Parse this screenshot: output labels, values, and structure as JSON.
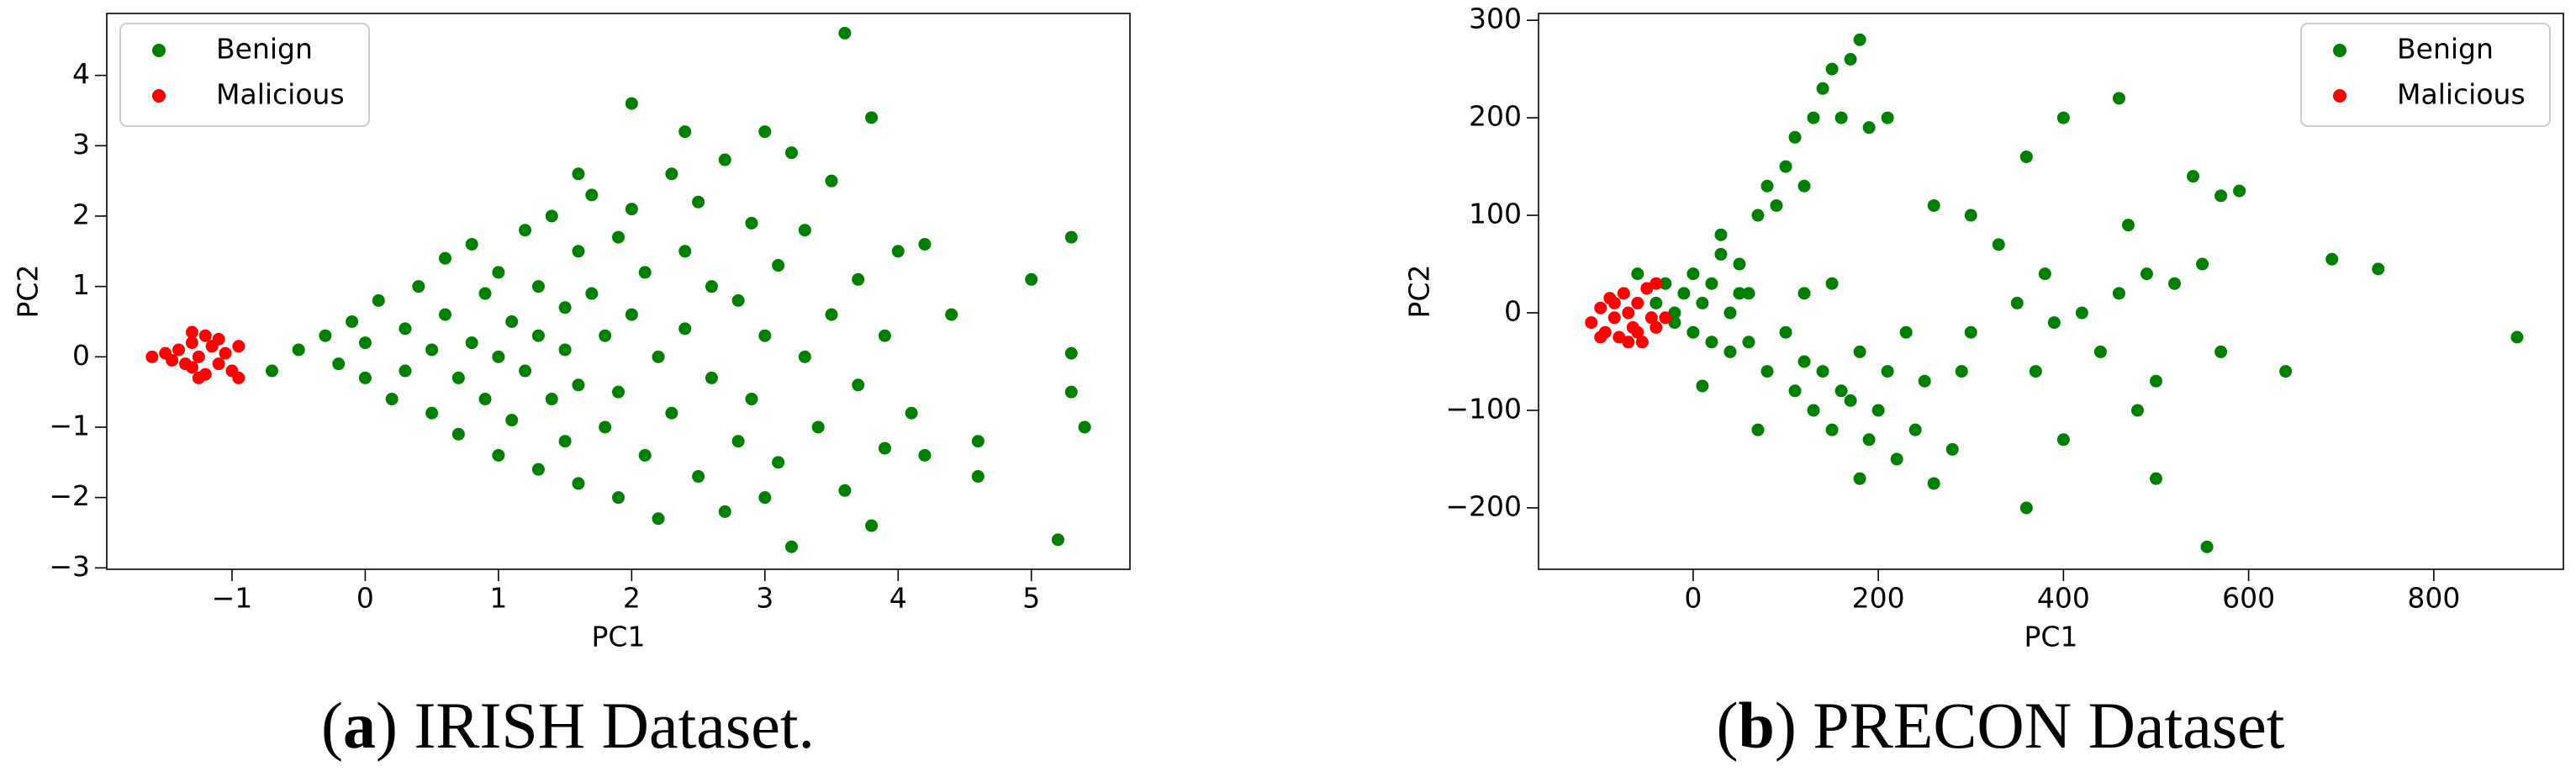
{
  "chart_data": [
    {
      "type": "scatter",
      "xlabel": "PC1",
      "ylabel": "PC2",
      "xlim": [
        -1.94,
        5.74
      ],
      "ylim": [
        -3.02,
        4.88
      ],
      "xticks": [
        {
          "value": -1,
          "label": "−1"
        },
        0,
        1,
        2,
        3,
        4,
        5
      ],
      "yticks": [
        {
          "value": -3,
          "label": "−3"
        },
        {
          "value": -2,
          "label": "−2"
        },
        {
          "value": -1,
          "label": "−1"
        },
        0,
        1,
        2,
        3,
        4
      ],
      "legend": "upper left",
      "caption": [
        "(",
        "a",
        ") IRISH Dataset."
      ],
      "series": [
        {
          "name": "Benign",
          "color": "#008000",
          "x": [
            -0.7,
            -0.5,
            -0.3,
            -0.2,
            -0.1,
            0,
            0,
            0.1,
            0.2,
            0.3,
            0.3,
            0.4,
            0.5,
            0.5,
            0.6,
            0.6,
            0.7,
            0.7,
            0.8,
            0.8,
            0.9,
            0.9,
            1.0,
            1.0,
            1.0,
            1.1,
            1.1,
            1.2,
            1.2,
            1.3,
            1.3,
            1.3,
            1.4,
            1.4,
            1.5,
            1.5,
            1.5,
            1.6,
            1.6,
            1.6,
            1.7,
            1.7,
            1.8,
            1.8,
            1.9,
            1.9,
            1.9,
            2.0,
            2.0,
            2.1,
            2.1,
            2.2,
            2.2,
            2.3,
            2.3,
            2.4,
            2.4,
            2.5,
            2.5,
            2.6,
            2.6,
            2.7,
            2.7,
            2.8,
            2.8,
            2.9,
            2.9,
            3.0,
            3.0,
            3.0,
            3.1,
            3.1,
            3.2,
            3.2,
            3.3,
            3.3,
            3.4,
            3.5,
            3.5,
            3.6,
            3.6,
            3.7,
            3.7,
            3.8,
            3.8,
            3.9,
            3.9,
            4.0,
            4.1,
            4.2,
            4.2,
            4.4,
            4.6,
            4.6,
            5.0,
            5.2,
            5.3,
            5.3,
            5.3,
            5.4,
            2.0,
            2.4,
            1.6
          ],
          "values": [
            -0.2,
            0.1,
            0.3,
            -0.1,
            0.5,
            0.2,
            -0.3,
            0.8,
            -0.6,
            0.4,
            -0.2,
            1.0,
            0.1,
            -0.8,
            1.4,
            0.6,
            -0.3,
            -1.1,
            0.2,
            1.6,
            -0.6,
            0.9,
            0,
            -1.4,
            1.2,
            0.5,
            -0.9,
            1.8,
            -0.2,
            0.3,
            -1.6,
            1.0,
            -0.6,
            2.0,
            0.7,
            -1.2,
            0.1,
            1.5,
            -1.8,
            -0.4,
            0.9,
            2.3,
            -1.0,
            0.3,
            1.7,
            -2.0,
            -0.5,
            0.6,
            2.1,
            -1.4,
            1.2,
            0,
            -2.3,
            2.6,
            -0.8,
            1.5,
            0.4,
            -1.7,
            2.2,
            -0.3,
            1.0,
            -2.2,
            2.8,
            0.8,
            -1.2,
            1.9,
            -0.6,
            3.2,
            0.3,
            -2.0,
            1.3,
            -1.5,
            2.9,
            -2.7,
            0,
            1.8,
            -1.0,
            0.6,
            2.5,
            4.6,
            -1.9,
            1.1,
            -0.4,
            -2.4,
            3.4,
            0.3,
            -1.3,
            1.5,
            -0.8,
            1.6,
            -1.4,
            0.6,
            -1.7,
            -1.2,
            1.1,
            -2.6,
            1.7,
            0.05,
            -0.5,
            -1.0,
            3.6,
            3.2,
            2.6
          ]
        },
        {
          "name": "Malicious",
          "color": "#ff0000",
          "x": [
            -1.6,
            -1.5,
            -1.45,
            -1.4,
            -1.35,
            -1.3,
            -1.3,
            -1.25,
            -1.2,
            -1.2,
            -1.15,
            -1.1,
            -1.1,
            -1.05,
            -1.0,
            -0.95,
            -0.95,
            -1.25,
            -1.3
          ],
          "values": [
            0,
            0.05,
            -0.05,
            0.1,
            -0.1,
            0.2,
            -0.15,
            0,
            0.3,
            -0.25,
            0.15,
            -0.1,
            0.25,
            0.05,
            -0.2,
            0.15,
            -0.3,
            -0.3,
            0.35
          ]
        }
      ]
    },
    {
      "type": "scatter",
      "xlabel": "PC1",
      "ylabel": "PC2",
      "xlim": [
        -167,
        940
      ],
      "ylim": [
        -263,
        307
      ],
      "xticks": [
        0,
        200,
        400,
        600,
        800
      ],
      "yticks": [
        {
          "value": -200,
          "label": "−200"
        },
        {
          "value": -100,
          "label": "−100"
        },
        0,
        100,
        200,
        300
      ],
      "legend": "upper right",
      "caption": [
        "(",
        "b",
        ") PRECON Dataset"
      ],
      "series": [
        {
          "name": "Benign",
          "color": "#008000",
          "x": [
            -40,
            -30,
            -20,
            -10,
            0,
            10,
            20,
            30,
            40,
            50,
            -20,
            0,
            20,
            40,
            60,
            30,
            50,
            70,
            80,
            90,
            100,
            110,
            120,
            130,
            140,
            150,
            160,
            170,
            180,
            190,
            210,
            100,
            110,
            120,
            130,
            140,
            150,
            160,
            170,
            180,
            190,
            200,
            210,
            220,
            180,
            230,
            240,
            250,
            260,
            260,
            280,
            290,
            300,
            300,
            330,
            350,
            360,
            360,
            370,
            380,
            390,
            400,
            400,
            420,
            440,
            460,
            460,
            470,
            480,
            490,
            500,
            500,
            520,
            540,
            550,
            555,
            570,
            570,
            590,
            640,
            690,
            740,
            890,
            60,
            80,
            70,
            120,
            150,
            -60,
            10
          ],
          "values": [
            10,
            30,
            0,
            20,
            40,
            10,
            30,
            60,
            0,
            20,
            -10,
            -20,
            -30,
            -40,
            -30,
            80,
            50,
            100,
            130,
            110,
            150,
            180,
            130,
            200,
            230,
            250,
            200,
            260,
            280,
            190,
            200,
            -20,
            -80,
            -50,
            -100,
            -60,
            -120,
            -80,
            -90,
            -40,
            -130,
            -100,
            -60,
            -150,
            -170,
            -20,
            -120,
            -70,
            110,
            -175,
            -140,
            -60,
            100,
            -20,
            70,
            10,
            -200,
            160,
            -60,
            40,
            -10,
            -130,
            200,
            0,
            -40,
            220,
            20,
            90,
            -100,
            40,
            -170,
            -70,
            30,
            140,
            50,
            -240,
            -40,
            120,
            125,
            -60,
            55,
            45,
            -25,
            20,
            -60,
            -120,
            20,
            30,
            40,
            -75
          ]
        },
        {
          "name": "Malicious",
          "color": "#ff0000",
          "x": [
            -110,
            -100,
            -95,
            -90,
            -85,
            -80,
            -75,
            -70,
            -65,
            -60,
            -55,
            -50,
            -45,
            -40,
            -100,
            -70,
            -85,
            -60,
            -30,
            -40
          ],
          "values": [
            -10,
            5,
            -20,
            15,
            -5,
            -25,
            20,
            0,
            -15,
            10,
            -30,
            25,
            -5,
            30,
            -25,
            -30,
            10,
            -20,
            -5,
            -15
          ]
        }
      ]
    }
  ]
}
